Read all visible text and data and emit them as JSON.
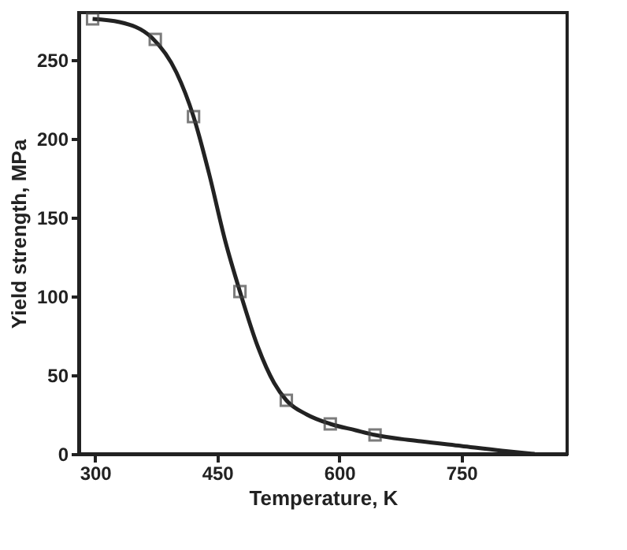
{
  "chart_data": {
    "type": "scatter",
    "xlabel": "Temperature, K",
    "ylabel": "Yield strength, MPa",
    "xlim": [
      280,
      880
    ],
    "xticks": [
      300,
      450,
      600,
      750
    ],
    "ylim": [
      0,
      280
    ],
    "yticks": [
      0,
      50,
      100,
      150,
      200,
      250
    ],
    "grid": false,
    "series": [
      {
        "type": "line",
        "color": "#222222",
        "marker": "none",
        "line_style": "solid",
        "x": [
          297,
          330,
          370,
          400,
          421,
          440,
          460,
          478,
          500,
          520,
          535,
          560,
          589,
          620,
          644,
          700,
          750,
          800,
          840
        ],
        "values": [
          276,
          274,
          264,
          242,
          214,
          178,
          135,
          103,
          68,
          45,
          34,
          25,
          19,
          15,
          12,
          8,
          5,
          2,
          0
        ]
      },
      {
        "color": "#444444",
        "marker": "square",
        "x": [
          297,
          374,
          421,
          478,
          535,
          589,
          644
        ],
        "values": [
          276,
          263,
          214,
          103,
          34,
          19,
          12
        ]
      }
    ]
  }
}
